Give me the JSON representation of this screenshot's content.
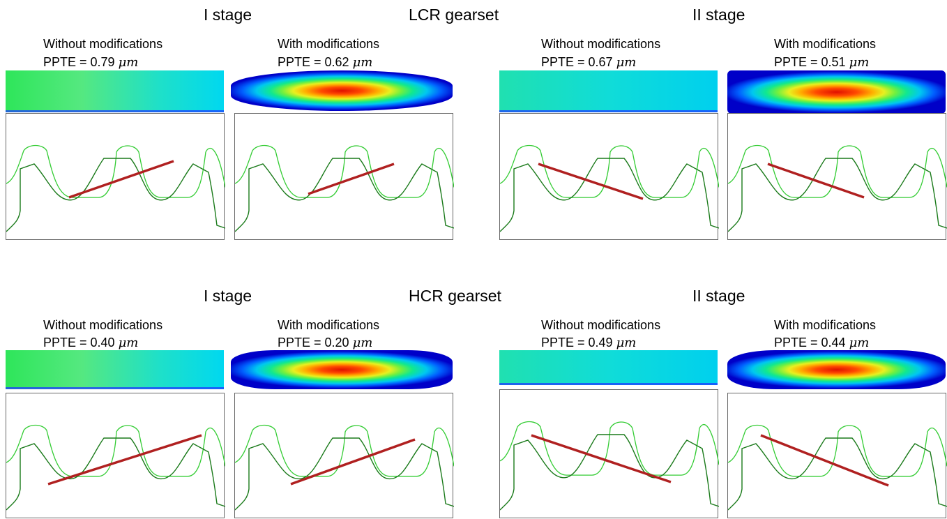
{
  "rows": [
    {
      "stage_left": "I stage",
      "gearset": "LCR gearset",
      "stage_right": "II stage",
      "panels": [
        {
          "condition": "Without modifications",
          "ppte_prefix": "PPTE = ",
          "ppte_value": "0.79",
          "ppte_unit": "μm",
          "map": "flat"
        },
        {
          "condition": "With modifications",
          "ppte_prefix": "PPTE = ",
          "ppte_value": "0.62",
          "ppte_unit": "μm",
          "map": "blob"
        },
        {
          "condition": "Without modifications",
          "ppte_prefix": "PPTE = ",
          "ppte_value": "0.67",
          "ppte_unit": "μm",
          "map": "flat2"
        },
        {
          "condition": "With modifications",
          "ppte_prefix": "PPTE = ",
          "ppte_value": "0.51",
          "ppte_unit": "μm",
          "map": "blob"
        }
      ]
    },
    {
      "stage_left": "I stage",
      "gearset": "HCR gearset",
      "stage_right": "II stage",
      "panels": [
        {
          "condition": "Without modifications",
          "ppte_prefix": "PPTE = ",
          "ppte_value": "0.40",
          "ppte_unit": "μm",
          "map": "flat"
        },
        {
          "condition": "With modifications",
          "ppte_prefix": "PPTE = ",
          "ppte_value": "0.20",
          "ppte_unit": "μm",
          "map": "blob"
        },
        {
          "condition": "Without modifications",
          "ppte_prefix": "PPTE = ",
          "ppte_value": "0.49",
          "ppte_unit": "μm",
          "map": "flat2"
        },
        {
          "condition": "With modifications",
          "ppte_prefix": "PPTE = ",
          "ppte_value": "0.44",
          "ppte_unit": "μm",
          "map": "blob"
        }
      ]
    }
  ],
  "colors": {
    "outer_tooth": "#33cc33",
    "inner_tooth": "#1a7a1a",
    "line_of_action": "#b02020"
  }
}
